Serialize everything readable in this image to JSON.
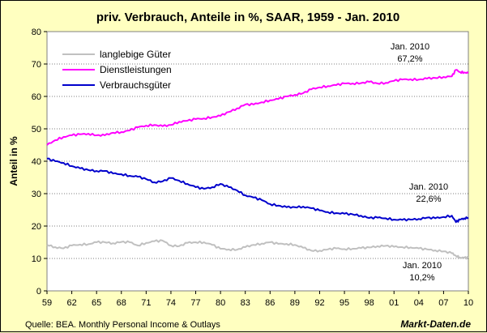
{
  "chart_data": {
    "type": "line",
    "title": "priv. Verbrauch, Anteile in %, SAAR, 1959 - Jan. 2010",
    "ylabel": "Anteil in %",
    "xlabel": "",
    "ylim": [
      0,
      80
    ],
    "yticks": [
      0,
      10,
      20,
      30,
      40,
      50,
      60,
      70,
      80
    ],
    "xticks": [
      "59",
      "62",
      "65",
      "68",
      "71",
      "74",
      "77",
      "80",
      "83",
      "86",
      "89",
      "92",
      "95",
      "98",
      "01",
      "04",
      "07",
      "10"
    ],
    "grid": "horizontal",
    "legend_position": "top-left",
    "x": [
      1959,
      1960,
      1961,
      1962,
      1963,
      1964,
      1965,
      1966,
      1967,
      1968,
      1969,
      1970,
      1971,
      1972,
      1973,
      1974,
      1975,
      1976,
      1977,
      1978,
      1979,
      1980,
      1981,
      1982,
      1983,
      1984,
      1985,
      1986,
      1987,
      1988,
      1989,
      1990,
      1991,
      1992,
      1993,
      1994,
      1995,
      1996,
      1997,
      1998,
      1999,
      2000,
      2001,
      2002,
      2003,
      2004,
      2005,
      2006,
      2007,
      2008,
      2008.5,
      2009,
      2009.5,
      2010
    ],
    "series": [
      {
        "name": "langlebige Güter",
        "color": "#c0c0c0",
        "values": [
          14.2,
          13.5,
          13.1,
          14.0,
          14.3,
          14.4,
          15.0,
          15.0,
          14.7,
          15.1,
          15.0,
          14.0,
          14.8,
          15.3,
          15.5,
          14.0,
          13.8,
          14.8,
          15.0,
          15.0,
          14.2,
          13.0,
          12.8,
          12.7,
          13.5,
          14.2,
          14.6,
          15.0,
          14.5,
          14.5,
          14.2,
          13.3,
          12.4,
          12.4,
          12.8,
          13.1,
          12.9,
          13.0,
          13.2,
          13.4,
          13.8,
          13.9,
          13.6,
          13.5,
          13.4,
          13.1,
          12.8,
          12.5,
          12.2,
          11.6,
          10.8,
          10.3,
          10.2,
          10.2
        ]
      },
      {
        "name": "Dienstleistungen",
        "color": "#ff00ff",
        "values": [
          45.0,
          46.5,
          47.5,
          48.0,
          48.3,
          48.5,
          48.0,
          48.0,
          48.8,
          49.0,
          49.5,
          50.5,
          51.0,
          51.2,
          50.8,
          51.2,
          52.2,
          52.5,
          53.0,
          53.2,
          53.6,
          54.0,
          55.2,
          56.3,
          57.5,
          57.5,
          58.2,
          58.8,
          59.2,
          60.0,
          60.5,
          61.0,
          62.2,
          62.8,
          63.2,
          63.5,
          64.0,
          64.0,
          64.1,
          64.5,
          64.0,
          64.2,
          64.8,
          65.2,
          65.3,
          65.2,
          65.5,
          65.7,
          66.0,
          66.2,
          68.2,
          67.5,
          67.4,
          67.2
        ]
      },
      {
        "name": "Verbrauchsgüter",
        "color": "#0000cc",
        "values": [
          40.8,
          40.0,
          39.5,
          38.5,
          37.8,
          37.3,
          37.0,
          37.0,
          36.2,
          36.0,
          35.5,
          35.2,
          34.5,
          33.5,
          33.8,
          34.8,
          34.0,
          33.0,
          32.0,
          31.5,
          32.0,
          33.0,
          32.0,
          31.0,
          29.5,
          28.8,
          28.0,
          26.8,
          26.3,
          25.8,
          25.8,
          26.0,
          25.5,
          24.8,
          24.3,
          24.0,
          23.8,
          23.6,
          23.2,
          22.5,
          22.6,
          22.4,
          22.0,
          21.9,
          22.0,
          22.2,
          22.6,
          22.4,
          22.8,
          23.2,
          21.2,
          22.0,
          22.4,
          22.6
        ]
      }
    ],
    "annotations": [
      {
        "line1": "Jan. 2010",
        "line2": "67,2%"
      },
      {
        "line1": "Jan. 2010",
        "line2": "22,6%"
      },
      {
        "line1": "Jan. 2010",
        "line2": "10,2%"
      }
    ]
  },
  "footer": {
    "source": "Quelle: BEA. Monthly Personal Income & Outlays",
    "brand": "Markt-Daten.de"
  }
}
